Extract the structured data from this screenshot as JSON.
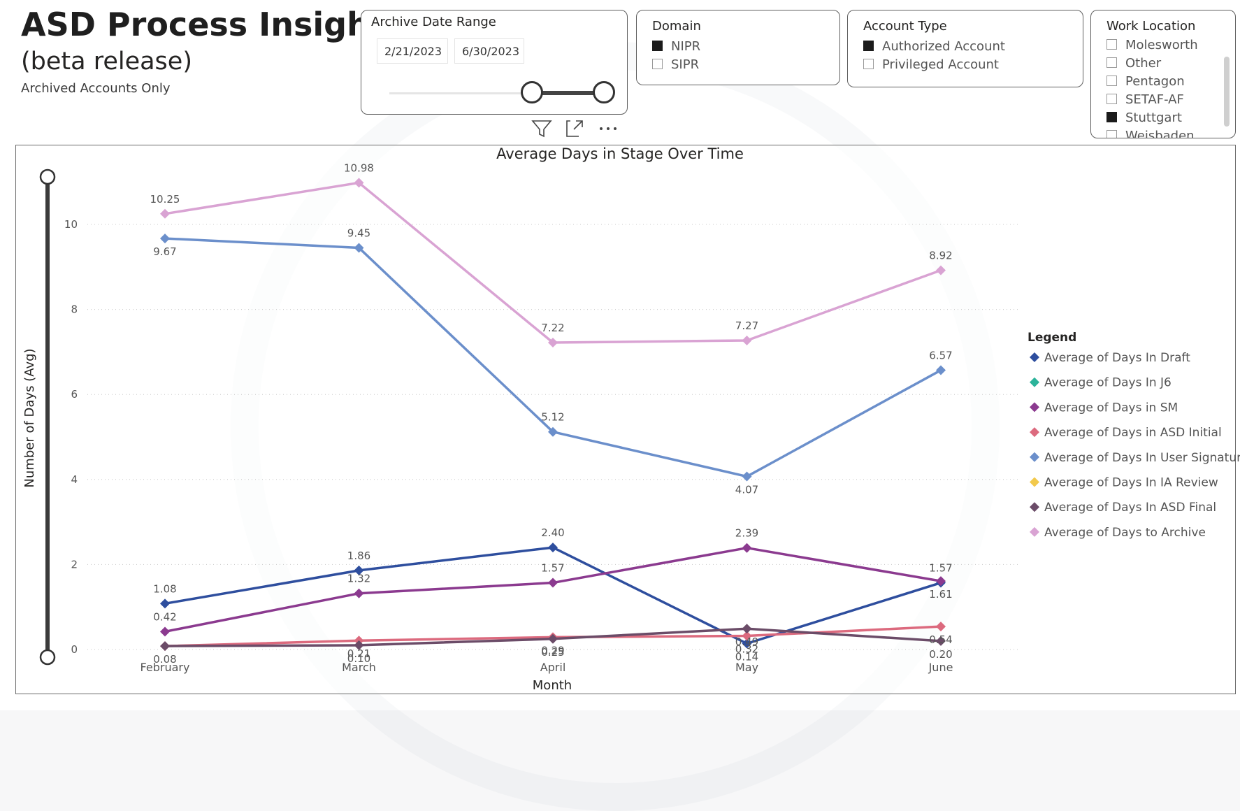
{
  "header": {
    "title": "ASD Process Insights",
    "subtitle": "(beta release)",
    "caption": "Archived Accounts Only"
  },
  "date_slicer": {
    "title": "Archive Date Range",
    "start": "2/21/2023",
    "end": "6/30/2023"
  },
  "domain_slicer": {
    "title": "Domain",
    "options": [
      {
        "label": "NIPR",
        "checked": true
      },
      {
        "label": "SIPR",
        "checked": false
      }
    ]
  },
  "account_slicer": {
    "title": "Account Type",
    "options": [
      {
        "label": "Authorized Account",
        "checked": true
      },
      {
        "label": "Privileged Account",
        "checked": false
      }
    ]
  },
  "location_slicer": {
    "title": "Work Location",
    "options": [
      {
        "label": "Molesworth",
        "checked": false
      },
      {
        "label": "Other",
        "checked": false
      },
      {
        "label": "Pentagon",
        "checked": false
      },
      {
        "label": "SETAF-AF",
        "checked": false
      },
      {
        "label": "Stuttgart",
        "checked": true
      },
      {
        "label": "Weisbaden",
        "checked": false
      }
    ]
  },
  "toolbar": {
    "filter_icon": "filter-icon",
    "focus_icon": "focus-mode-icon",
    "more_icon": "more-options-icon"
  },
  "chart_data": {
    "type": "line",
    "title": "Average Days in Stage Over Time",
    "xlabel": "Month",
    "ylabel": "Number of Days (Avg)",
    "categories": [
      "February",
      "March",
      "April",
      "May",
      "June"
    ],
    "ylim": [
      0,
      11
    ],
    "yticks": [
      0,
      2,
      4,
      6,
      8,
      10
    ],
    "grid": true,
    "legend_title": "Legend",
    "legend_position": "right",
    "series": [
      {
        "name": "Average of Days In Draft",
        "color": "#2e4e9e",
        "values": [
          1.08,
          1.86,
          2.4,
          0.14,
          1.57
        ],
        "labels": [
          "1.08",
          "1.86",
          "2.40",
          "0.14",
          "1.57"
        ]
      },
      {
        "name": "Average of Days In J6",
        "color": "#2bb39a",
        "values": [
          null,
          null,
          null,
          null,
          null
        ],
        "labels": []
      },
      {
        "name": "Average of Days in SM",
        "color": "#8b3a8f",
        "values": [
          0.42,
          1.32,
          1.57,
          2.39,
          1.61
        ],
        "labels": [
          "0.42",
          "1.32",
          "1.57",
          "2.39",
          "1.61"
        ]
      },
      {
        "name": "Average of Days in ASD Initial",
        "color": "#dc6a7e",
        "values": [
          0.08,
          0.21,
          0.29,
          0.32,
          0.54
        ],
        "labels": [
          "0.08",
          "0.21",
          "0.29",
          "0.32",
          "0.54"
        ]
      },
      {
        "name": "Average of Days In User Signature",
        "color": "#6b8fcb",
        "values": [
          9.67,
          9.45,
          5.12,
          4.07,
          6.57
        ],
        "labels": [
          "9.67",
          "9.45",
          "5.12",
          "4.07",
          "6.57"
        ]
      },
      {
        "name": "Average of Days In IA Review",
        "color": "#f2c94c",
        "values": [
          null,
          null,
          null,
          null,
          null
        ],
        "labels": []
      },
      {
        "name": "Average of Days In ASD Final",
        "color": "#6b4c68",
        "values": [
          0.08,
          0.1,
          0.25,
          0.49,
          0.2
        ],
        "labels": [
          "",
          "0.10",
          "0.25",
          "0.49",
          "0.20"
        ]
      },
      {
        "name": "Average of Days to Archive",
        "color": "#d9a3d3",
        "values": [
          10.25,
          10.98,
          7.22,
          7.27,
          8.92
        ],
        "labels": [
          "10.25",
          "10.98",
          "7.22",
          "7.27",
          "8.92"
        ]
      }
    ]
  }
}
